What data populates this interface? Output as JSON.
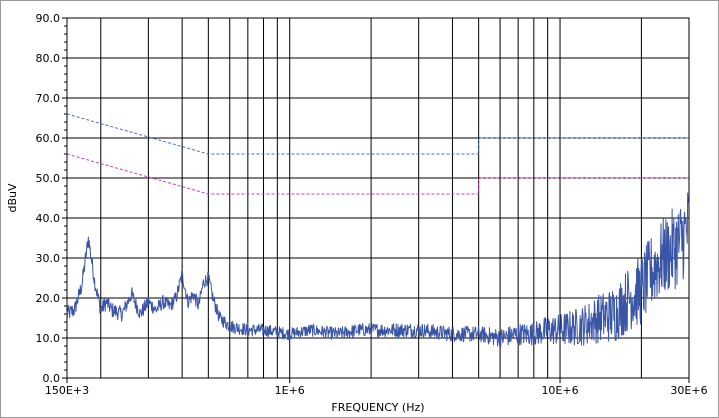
{
  "chart_data": {
    "type": "line",
    "title": "",
    "xlabel": "FREQUENCY (Hz)",
    "ylabel": "dBuV",
    "xscale": "log",
    "xlim": [
      150000,
      30000000
    ],
    "ylim": [
      0,
      90
    ],
    "grid": true,
    "x_tick_labels": [
      {
        "value": 150000,
        "label": "150E+3"
      },
      {
        "value": 1000000,
        "label": "1E+6"
      },
      {
        "value": 10000000,
        "label": "10E+6"
      },
      {
        "value": 30000000,
        "label": "30E+6"
      }
    ],
    "y_tick_labels": [
      "0.0",
      "10.0",
      "20.0",
      "30.0",
      "40.0",
      "50.0",
      "60.0",
      "70.0",
      "80.0",
      "90.0"
    ],
    "colors": {
      "trace": "#3a55a6",
      "limit_upper": "#4a6fb5",
      "limit_lower": "#c040c0"
    },
    "series": [
      {
        "style": "dashed",
        "color": "#4a6fb5",
        "x": [
          150000,
          500000,
          500000,
          5000000,
          5000000,
          30000000
        ],
        "values": [
          66,
          56,
          56,
          56,
          60,
          60
        ]
      },
      {
        "style": "dashed",
        "color": "#c040c0",
        "x": [
          150000,
          500000,
          500000,
          5000000,
          5000000,
          30000000
        ],
        "values": [
          56,
          46,
          46,
          46,
          50,
          50
        ]
      },
      {
        "style": "solid",
        "color": "#3a55a6",
        "x": [
          150000,
          160000,
          170000,
          180000,
          190000,
          200000,
          210000,
          220000,
          240000,
          260000,
          280000,
          300000,
          320000,
          340000,
          360000,
          380000,
          400000,
          420000,
          440000,
          460000,
          480000,
          500000,
          520000,
          550000,
          600000,
          700000,
          800000,
          1000000,
          1200000,
          1500000,
          1800000,
          2000000,
          2500000,
          3000000,
          4000000,
          5000000,
          6000000,
          7000000,
          8000000,
          9000000,
          10000000,
          12000000,
          14000000,
          16000000,
          18000000,
          20000000,
          22000000,
          24000000,
          26000000,
          28000000,
          30000000
        ],
        "values": [
          16,
          17,
          23,
          35,
          24,
          17,
          19,
          17,
          16,
          21,
          16,
          19,
          17,
          19,
          18,
          20,
          26,
          19,
          21,
          18,
          24,
          25,
          20,
          15,
          13,
          12,
          12,
          11,
          12,
          11,
          12,
          12,
          12,
          12,
          11,
          11,
          10,
          11,
          11,
          12,
          12,
          13,
          15,
          16,
          20,
          22,
          27,
          30,
          32,
          34,
          38
        ],
        "noise": {
          "peak_to_peak_dBuV": [
            [
              150000,
              4
            ],
            [
              1000000,
              3
            ],
            [
              5000000,
              4
            ],
            [
              8000000,
              6
            ],
            [
              12000000,
              10
            ],
            [
              20000000,
              18
            ],
            [
              30000000,
              22
            ]
          ]
        }
      }
    ]
  }
}
